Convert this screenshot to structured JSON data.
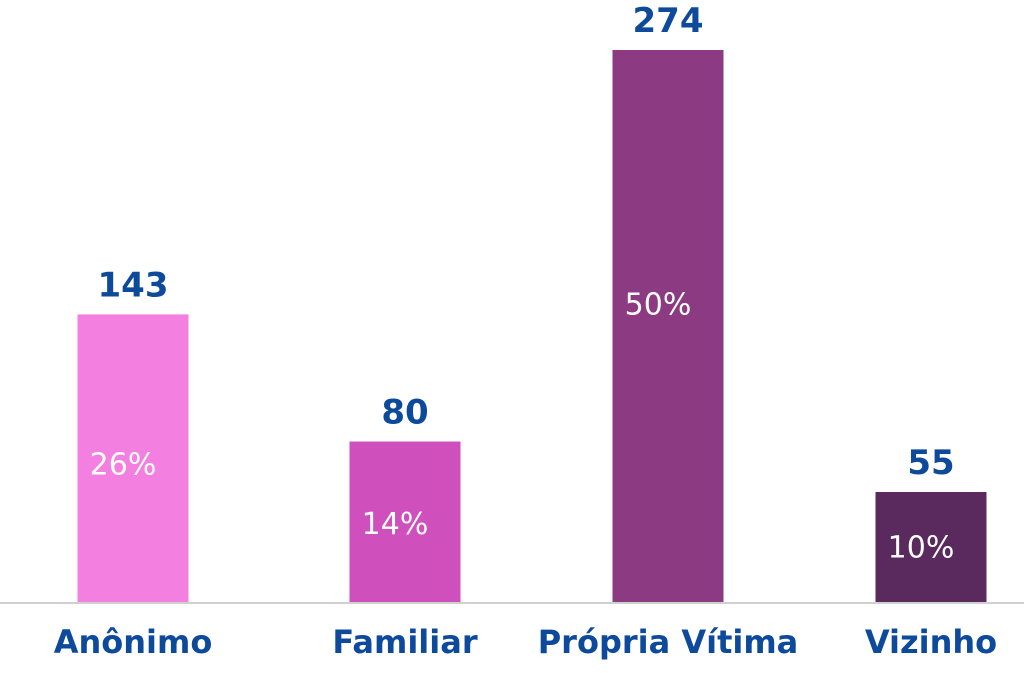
{
  "chart_data": {
    "type": "bar",
    "categories": [
      "Anônimo",
      "Familiar",
      "Própria Vítima",
      "Vizinho"
    ],
    "values": [
      143,
      80,
      274,
      55
    ],
    "percent_labels": [
      "26%",
      "14%",
      "50%",
      "10%"
    ],
    "colors": [
      "#f37fe0",
      "#cf4fbd",
      "#8c3a82",
      "#5a2a5e"
    ],
    "value_label_color": "#0d4a9c",
    "category_label_color": "#0d4a9c",
    "percent_label_color": "#ffffff",
    "ylim": [
      0,
      274
    ],
    "grid": false,
    "legend": "none"
  }
}
